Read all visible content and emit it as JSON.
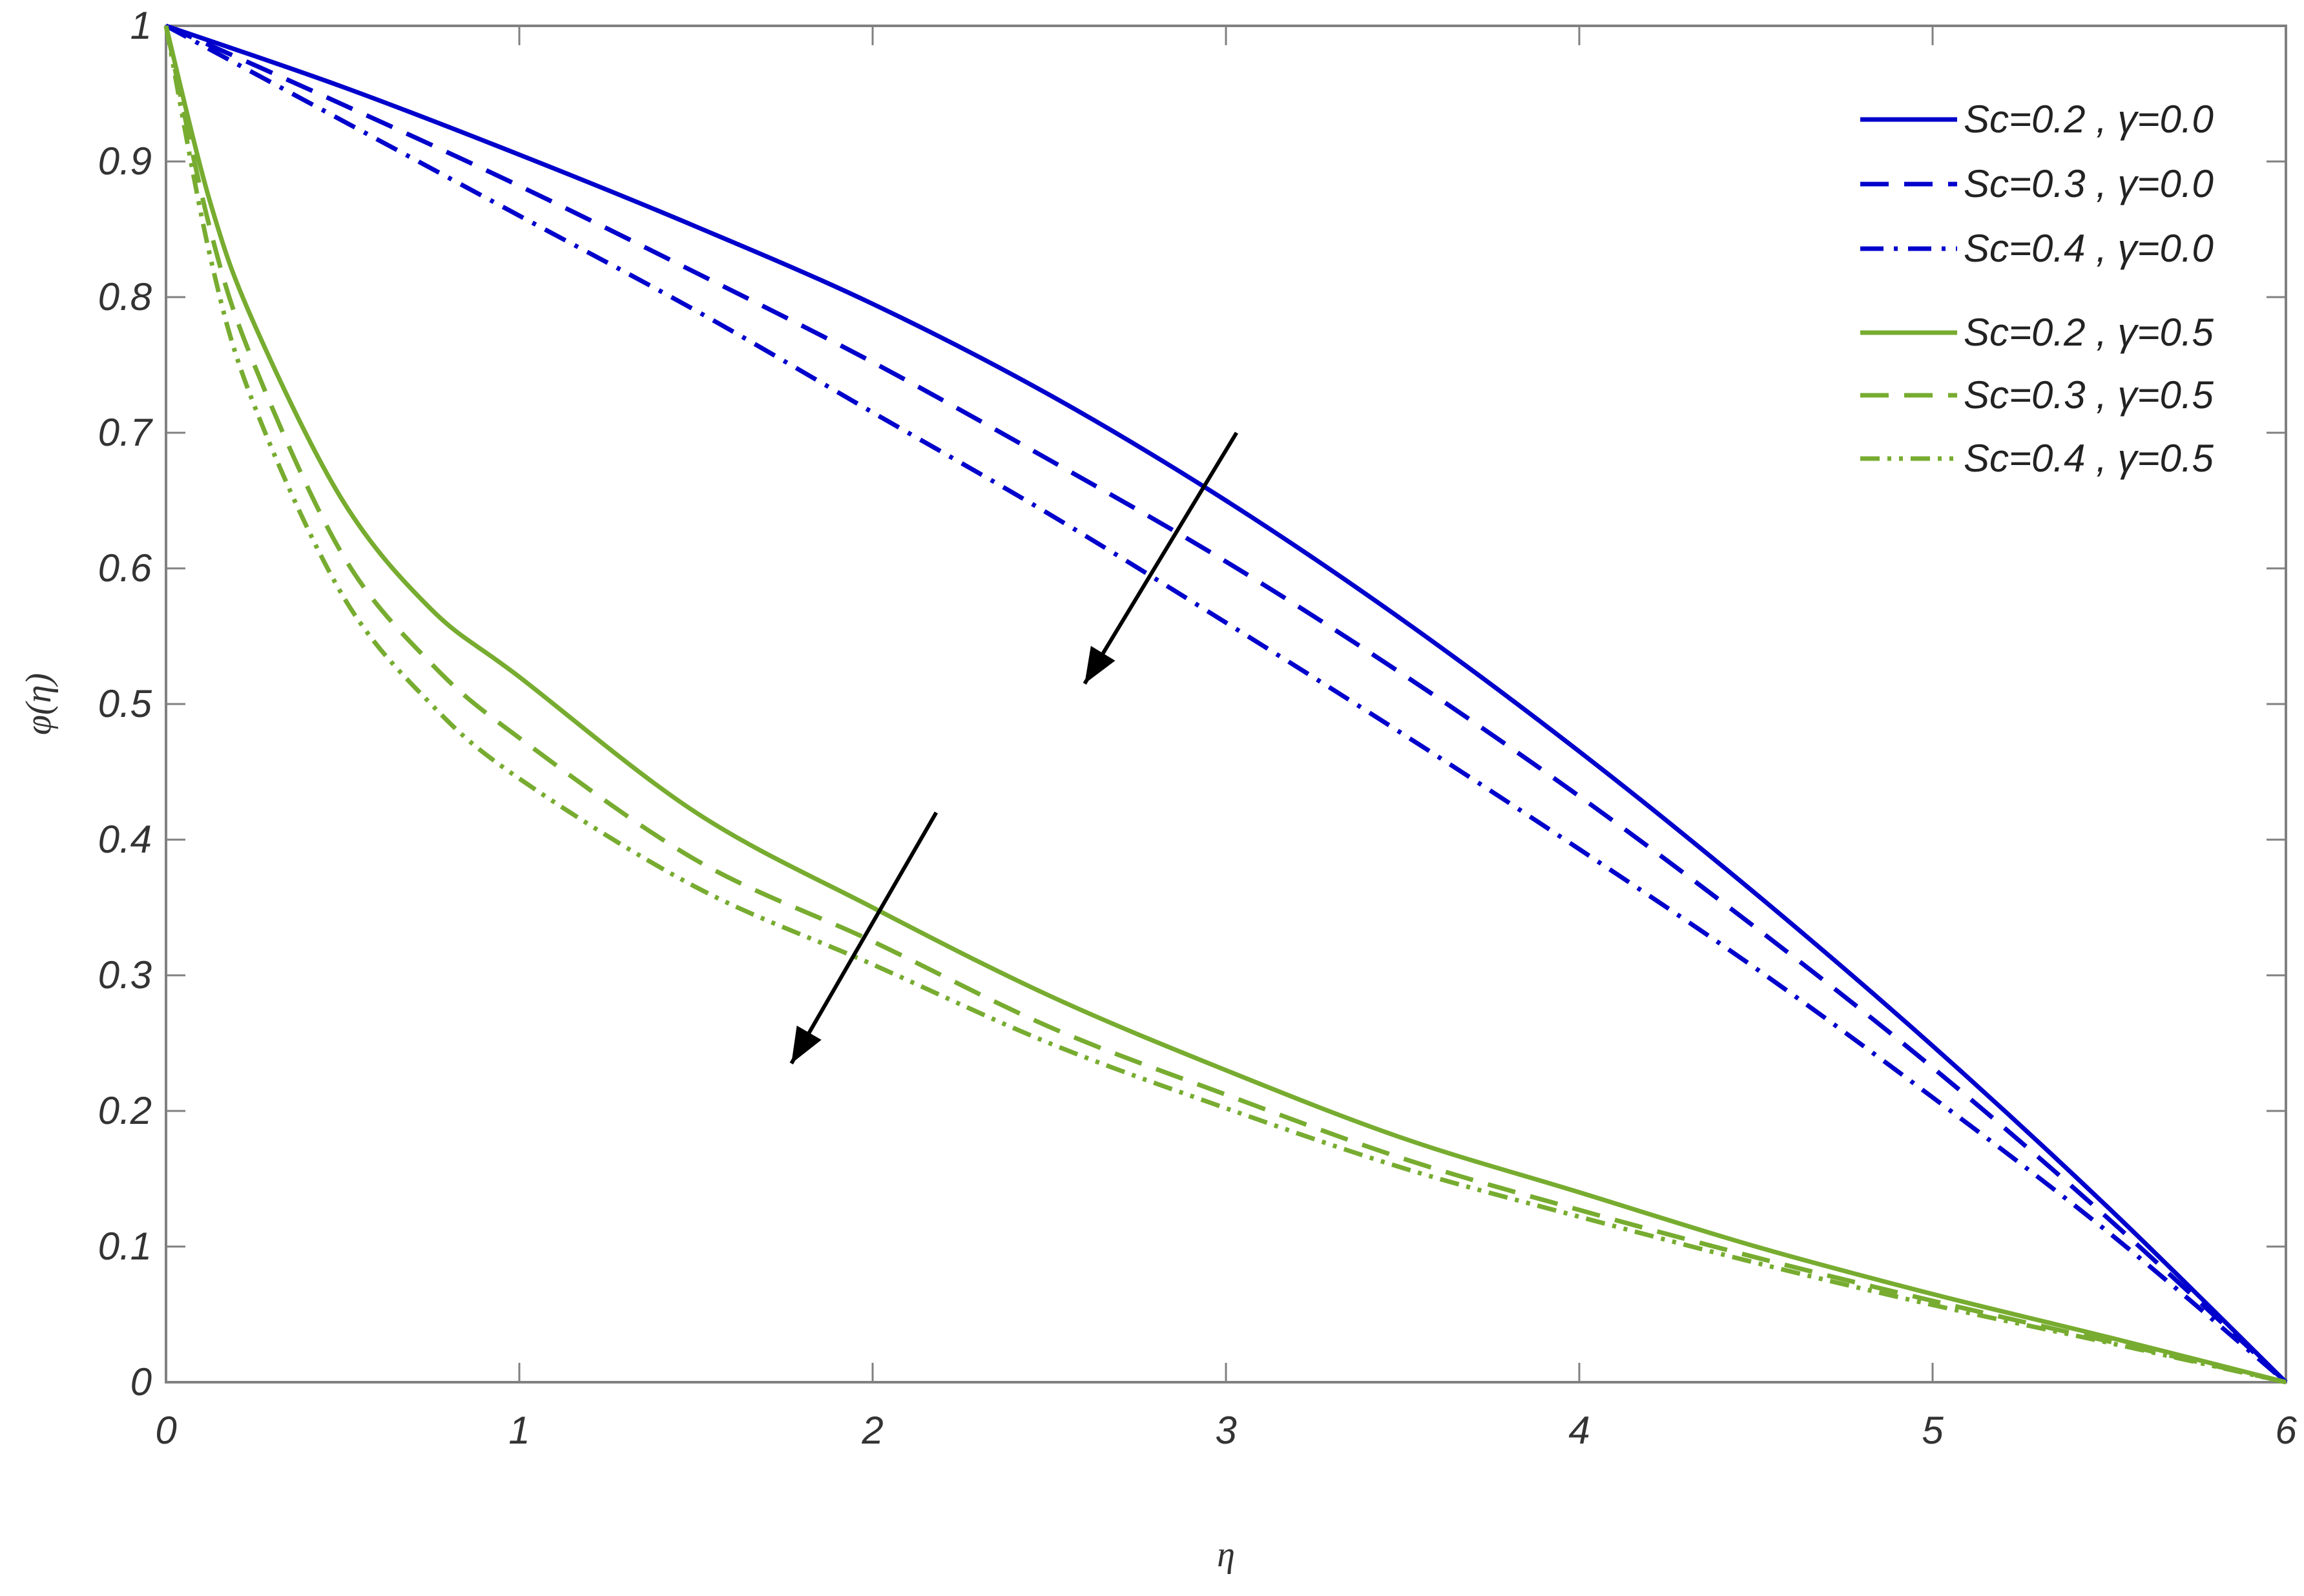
{
  "chart_data": {
    "type": "line",
    "title": "",
    "xlabel": "η",
    "ylabel": "φ(η)",
    "xlim": [
      0,
      6
    ],
    "ylim": [
      0,
      1
    ],
    "xticks": [
      "0",
      "1",
      "2",
      "3",
      "4",
      "5",
      "6"
    ],
    "yticks": [
      "0",
      "0.1",
      "0.2",
      "0.3",
      "0.4",
      "0.5",
      "0.6",
      "0.7",
      "0.8",
      "0.9",
      "1"
    ],
    "grid": false,
    "legend_position": "top-right",
    "colors": {
      "blue": "#0000cc",
      "green": "#77ac30",
      "arrow": "#000000",
      "axis": "#808080"
    },
    "series": [
      {
        "name": "Sc=0.2 , γ=0.0",
        "color": "#0000cc",
        "style": "solid",
        "x": [
          0,
          0.5,
          1,
          1.5,
          2,
          2.5,
          3,
          3.5,
          4,
          4.5,
          5,
          5.5,
          6
        ],
        "y": [
          1,
          0.955,
          0.905,
          0.852,
          0.795,
          0.728,
          0.65,
          0.562,
          0.465,
          0.36,
          0.248,
          0.128,
          0
        ]
      },
      {
        "name": "Sc=0.3 , γ=0.0",
        "color": "#0000cc",
        "style": "dashed",
        "x": [
          0,
          0.5,
          1,
          1.5,
          2,
          2.5,
          3,
          3.5,
          4,
          4.5,
          5,
          5.5,
          6
        ],
        "y": [
          1,
          0.942,
          0.882,
          0.818,
          0.752,
          0.68,
          0.605,
          0.522,
          0.432,
          0.335,
          0.232,
          0.12,
          0
        ]
      },
      {
        "name": "Sc=0.4 , γ=0.0",
        "color": "#0000cc",
        "style": "dashdot",
        "x": [
          0,
          0.5,
          1,
          1.5,
          2,
          2.5,
          3,
          3.5,
          4,
          4.5,
          5,
          5.5,
          6
        ],
        "y": [
          1,
          0.93,
          0.86,
          0.79,
          0.715,
          0.64,
          0.56,
          0.478,
          0.393,
          0.305,
          0.21,
          0.11,
          0
        ]
      },
      {
        "name": "Sc=0.2 , γ=0.5",
        "color": "#77ac30",
        "style": "solid",
        "x": [
          0,
          0.125,
          0.25,
          0.5,
          0.75,
          1,
          1.5,
          2,
          2.5,
          3,
          3.5,
          4,
          4.5,
          5,
          5.5,
          6
        ],
        "y": [
          1,
          0.87,
          0.78,
          0.65,
          0.57,
          0.52,
          0.42,
          0.35,
          0.285,
          0.23,
          0.18,
          0.14,
          0.1,
          0.065,
          0.033,
          0
        ]
      },
      {
        "name": "Sc=0.3 , γ=0.5",
        "color": "#77ac30",
        "style": "dashed",
        "x": [
          0,
          0.125,
          0.25,
          0.5,
          0.75,
          1,
          1.5,
          2,
          2.5,
          3,
          3.5,
          4,
          4.5,
          5,
          5.5,
          6
        ],
        "y": [
          1,
          0.85,
          0.75,
          0.61,
          0.53,
          0.475,
          0.385,
          0.325,
          0.262,
          0.212,
          0.165,
          0.127,
          0.092,
          0.06,
          0.03,
          0
        ]
      },
      {
        "name": "Sc=0.4 , γ=0.5",
        "color": "#77ac30",
        "style": "dashdotdot",
        "x": [
          0,
          0.125,
          0.25,
          0.5,
          0.75,
          1,
          1.5,
          2,
          2.5,
          3,
          3.5,
          4,
          4.5,
          5,
          5.5,
          6
        ],
        "y": [
          1,
          0.83,
          0.72,
          0.58,
          0.5,
          0.445,
          0.365,
          0.308,
          0.25,
          0.202,
          0.158,
          0.122,
          0.088,
          0.057,
          0.029,
          0
        ]
      }
    ],
    "annotations": [
      {
        "type": "arrow",
        "from": [
          3.03,
          0.7
        ],
        "to": [
          2.6,
          0.515
        ]
      },
      {
        "type": "arrow",
        "from": [
          2.18,
          0.42
        ],
        "to": [
          1.77,
          0.235
        ]
      }
    ]
  }
}
